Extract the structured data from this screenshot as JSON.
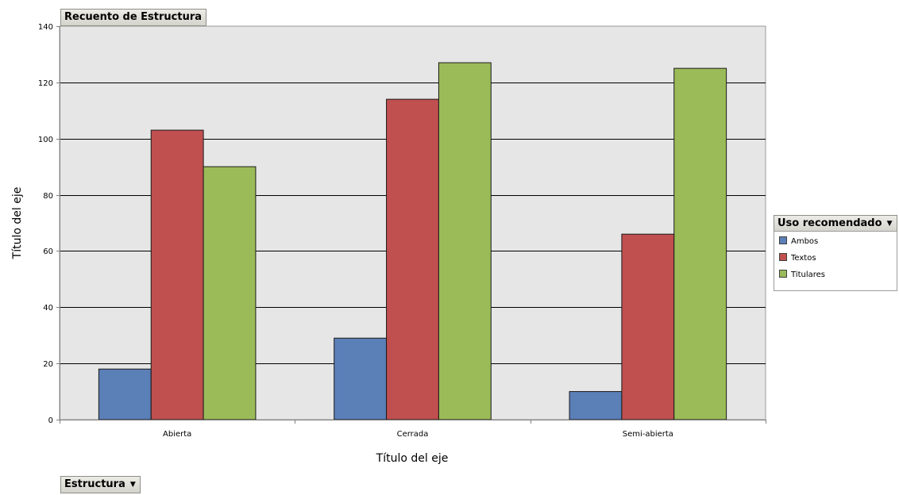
{
  "measure_button": {
    "label": "Recuento de Estructura"
  },
  "axis_field_button": {
    "label": "Estructura"
  },
  "legend": {
    "title": "Uso recomendado",
    "placement": "right"
  },
  "chart_data": {
    "type": "bar",
    "title": "",
    "xlabel": "Título del eje",
    "ylabel": "Título del eje",
    "categories": [
      "Abierta",
      "Cerrada",
      "Semi-abierta"
    ],
    "series": [
      {
        "name": "Ambos",
        "color": "#5b7fb7",
        "values": [
          18,
          29,
          10
        ]
      },
      {
        "name": "Textos",
        "color": "#c04f4f",
        "values": [
          103,
          114,
          66
        ]
      },
      {
        "name": "Titulares",
        "color": "#9bbb59",
        "values": [
          90,
          127,
          125
        ]
      }
    ],
    "ylim": [
      0,
      140
    ],
    "yticks": [
      "0",
      "20",
      "40",
      "60",
      "80",
      "100",
      "120",
      "140"
    ],
    "grid": true
  }
}
